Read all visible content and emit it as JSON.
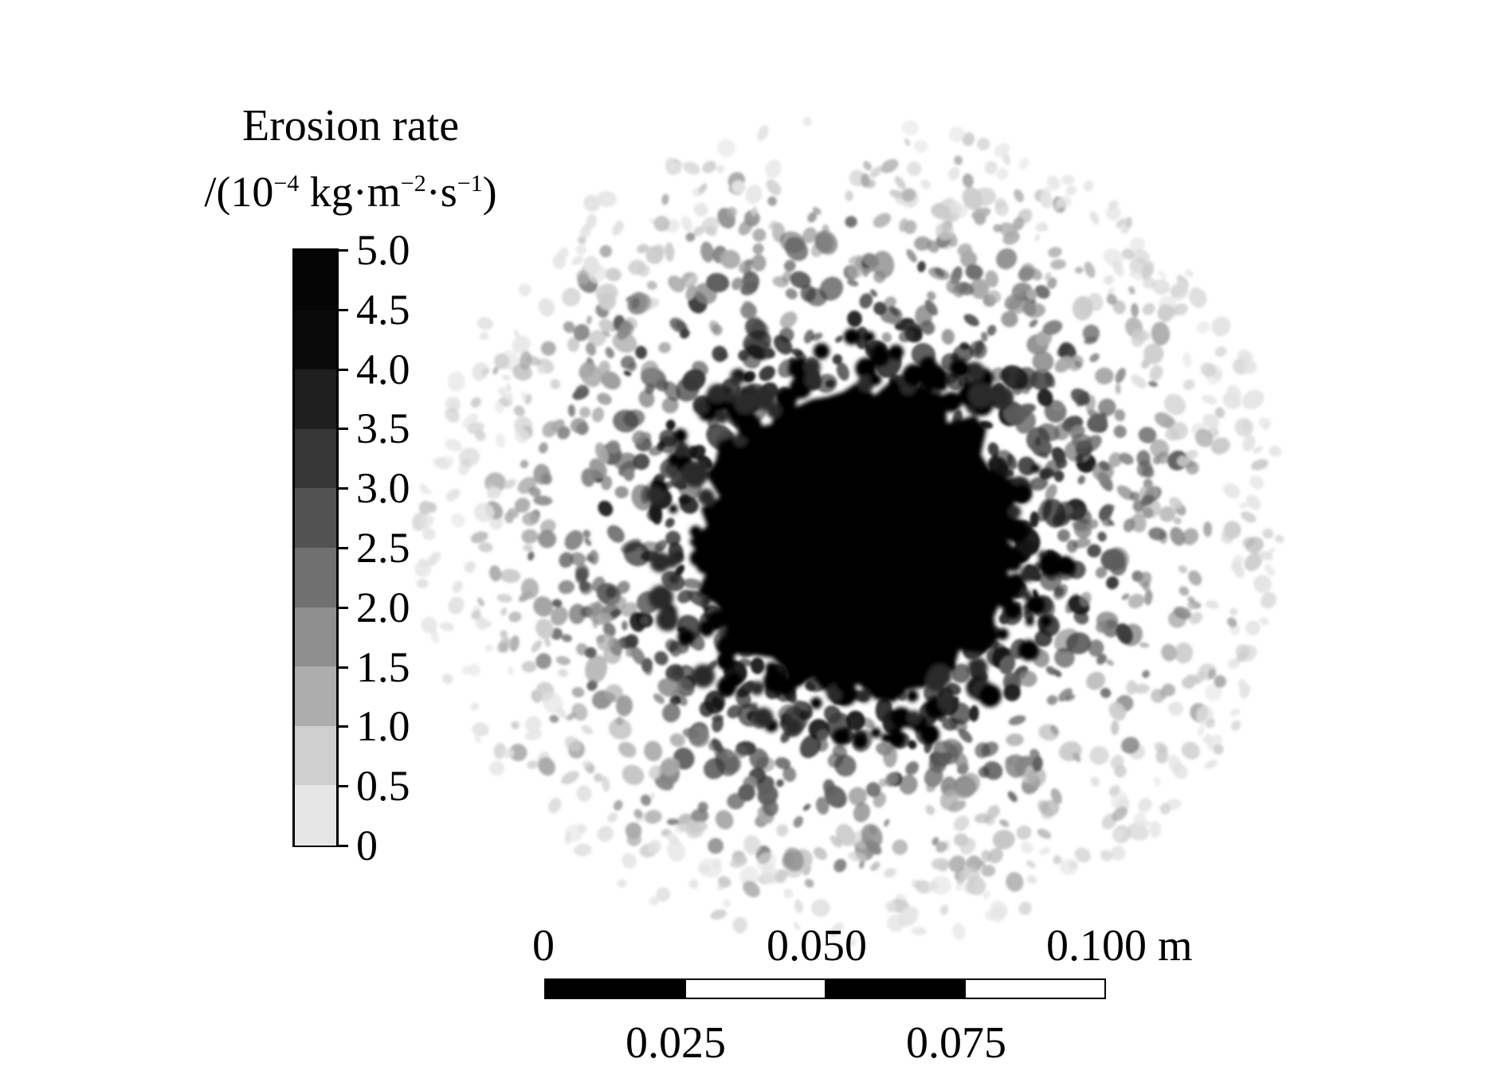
{
  "legend": {
    "title_line1": "Erosion rate",
    "title_line2_prefix": "/(10",
    "title_line2_exp1": "−4",
    "title_line2_mid1": " kg·m",
    "title_line2_exp2": "−2",
    "title_line2_mid2": "·s",
    "title_line2_exp3": "−1",
    "title_line2_suffix": ")",
    "ticks": [
      "5.0",
      "4.5",
      "4.0",
      "3.5",
      "3.0",
      "2.5",
      "2.0",
      "1.5",
      "1.0",
      "0.5",
      "0"
    ],
    "band_colors": [
      "#050505",
      "#0a0a0a",
      "#1f1f1f",
      "#363636",
      "#525252",
      "#707070",
      "#8f8f8f",
      "#adadad",
      "#cfcfcf",
      "#e6e6e6",
      "#ffffff"
    ]
  },
  "scale_bar": {
    "top_labels": [
      "0",
      "0.050",
      "0.100 m"
    ],
    "bottom_labels": [
      "0.025",
      "0.075"
    ],
    "segment_colors": [
      "#000000",
      "#ffffff",
      "#000000",
      "#ffffff"
    ]
  },
  "map": {
    "core_color": "#000000",
    "halo_colors": [
      "#1a1a1a",
      "#3a3a3a",
      "#5e5e5e",
      "#858585",
      "#aaaaaa",
      "#cccccc",
      "#e3e3e3"
    ]
  }
}
